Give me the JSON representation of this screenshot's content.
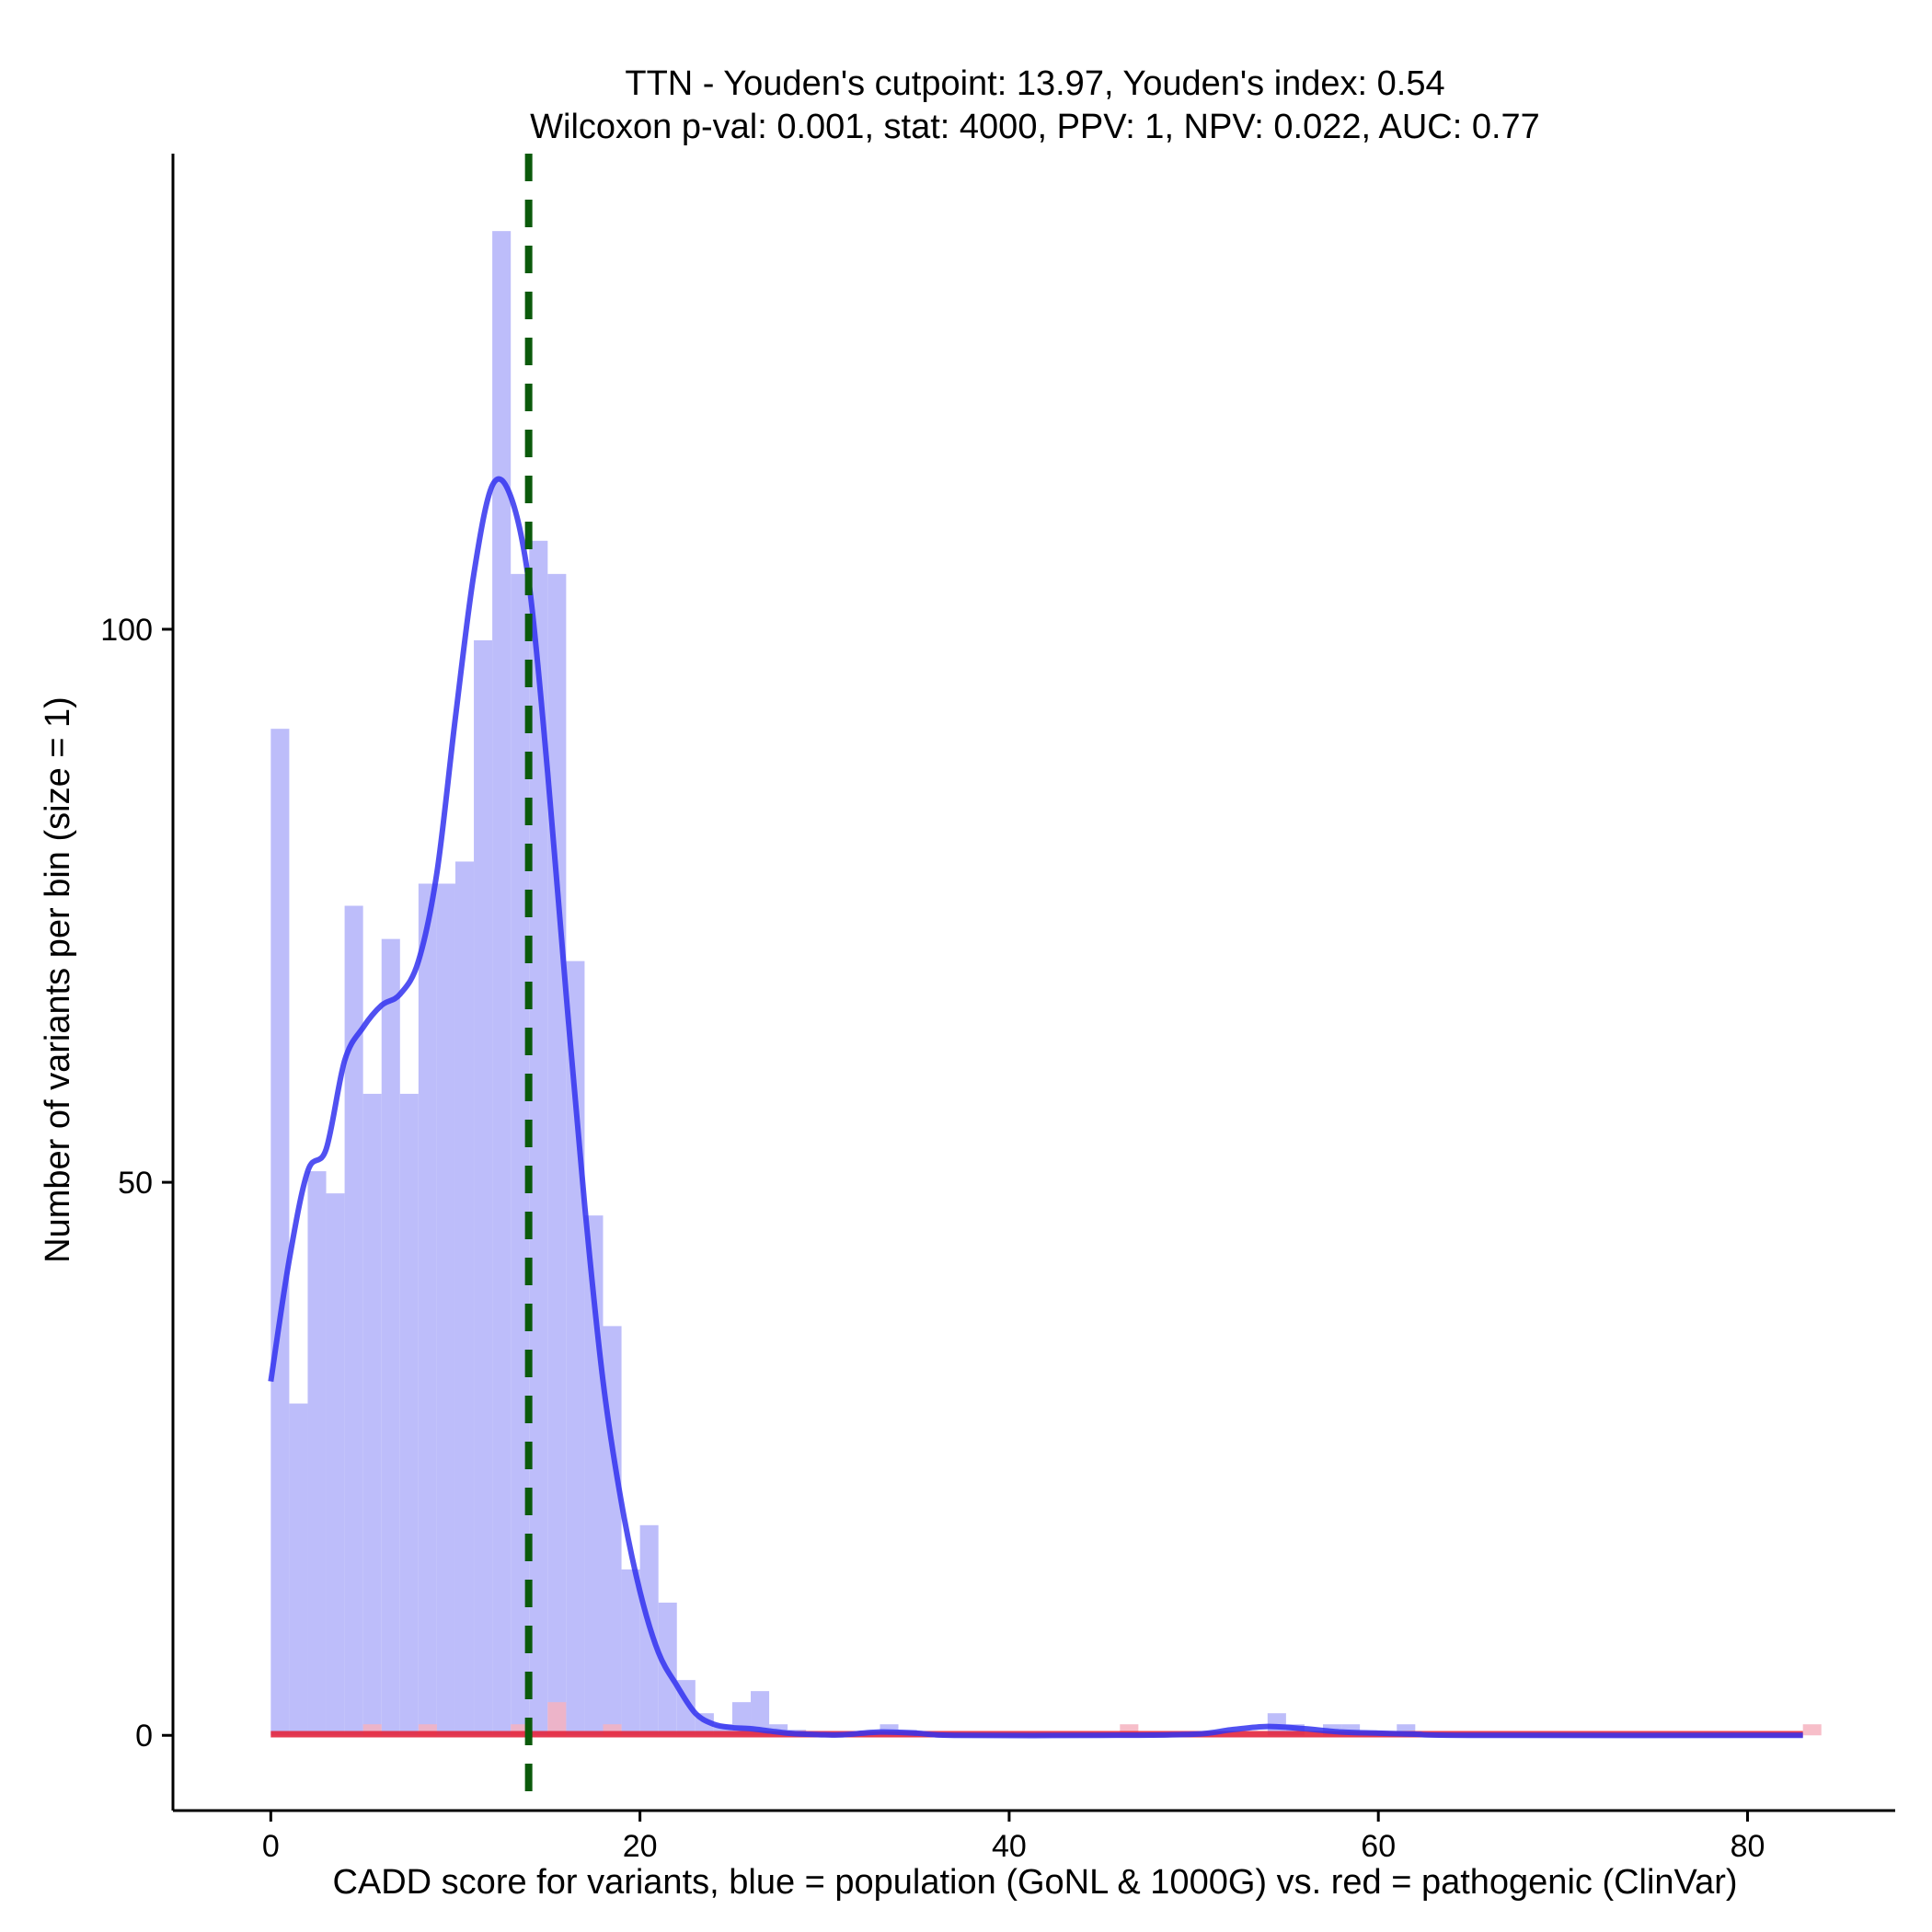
{
  "chart_data": {
    "type": "histogram",
    "title_line1": "TTN - Youden's cutpoint: 13.97, Youden's index: 0.54",
    "title_line2": "Wilcoxon p-val: 0.001, stat: 4000, PPV: 1, NPV: 0.022, AUC: 0.77",
    "xlabel": "CADD score for variants, blue = population (GoNL & 1000G) vs. red = pathogenic (ClinVar)",
    "ylabel": "Number of variants per bin (size = 1)",
    "xlim": [
      -5.3,
      88
    ],
    "ylim": [
      -6.8,
      143
    ],
    "xticks": [
      0,
      20,
      40,
      60,
      80
    ],
    "yticks": [
      0,
      50,
      100
    ],
    "bin_width": 1,
    "cutpoint": 13.97,
    "colors": {
      "population_bars": "#bdbdfa",
      "population_line": "#3333ee",
      "pathogenic_bars": "#f6b3bf",
      "pathogenic_line": "#e3263d",
      "cutpoint_line": "#0b5a0b"
    },
    "series": [
      {
        "role": "population",
        "bins": [
          [
            0,
            91
          ],
          [
            1,
            30
          ],
          [
            2,
            51
          ],
          [
            3,
            49
          ],
          [
            4,
            75
          ],
          [
            5,
            58
          ],
          [
            6,
            72
          ],
          [
            7,
            58
          ],
          [
            8,
            77
          ],
          [
            9,
            77
          ],
          [
            10,
            79
          ],
          [
            11,
            99
          ],
          [
            12,
            136
          ],
          [
            13,
            105
          ],
          [
            14,
            108
          ],
          [
            15,
            105
          ],
          [
            16,
            70
          ],
          [
            17,
            47
          ],
          [
            18,
            37
          ],
          [
            19,
            15
          ],
          [
            20,
            19
          ],
          [
            21,
            12
          ],
          [
            22,
            5
          ],
          [
            23,
            2
          ],
          [
            24,
            1
          ],
          [
            25,
            3
          ],
          [
            26,
            4
          ],
          [
            27,
            1
          ],
          [
            28,
            0.5
          ],
          [
            33,
            1
          ],
          [
            34,
            0.5
          ],
          [
            54,
            2
          ],
          [
            55,
            1
          ],
          [
            57,
            1
          ],
          [
            58,
            1
          ],
          [
            61,
            1
          ]
        ],
        "density": [
          [
            0,
            32
          ],
          [
            1,
            43
          ],
          [
            2,
            51
          ],
          [
            3,
            53
          ],
          [
            4,
            61
          ],
          [
            5,
            64
          ],
          [
            6,
            66
          ],
          [
            7,
            67
          ],
          [
            8,
            70
          ],
          [
            9,
            78
          ],
          [
            10,
            92
          ],
          [
            11,
            105
          ],
          [
            12,
            113
          ],
          [
            13,
            112
          ],
          [
            14,
            104
          ],
          [
            15,
            87
          ],
          [
            16,
            67
          ],
          [
            17,
            48
          ],
          [
            18,
            32
          ],
          [
            19,
            21
          ],
          [
            20,
            13
          ],
          [
            21,
            7.5
          ],
          [
            22,
            4.5
          ],
          [
            23,
            2
          ],
          [
            24,
            1
          ],
          [
            25,
            0.7
          ],
          [
            26,
            0.6
          ],
          [
            27,
            0.4
          ],
          [
            28,
            0.2
          ],
          [
            29,
            0.1
          ],
          [
            30,
            0.05
          ],
          [
            31,
            0.05
          ],
          [
            33,
            0.3
          ],
          [
            35,
            0.2
          ],
          [
            37,
            0
          ],
          [
            45,
            0
          ],
          [
            50,
            0.1
          ],
          [
            52,
            0.5
          ],
          [
            54,
            0.8
          ],
          [
            56,
            0.6
          ],
          [
            58,
            0.3
          ],
          [
            60,
            0.2
          ],
          [
            62,
            0.1
          ],
          [
            65,
            0
          ],
          [
            83,
            0
          ]
        ]
      },
      {
        "role": "pathogenic",
        "bins": [
          [
            5,
            1
          ],
          [
            8,
            1
          ],
          [
            13,
            1
          ],
          [
            15,
            3
          ],
          [
            18,
            1
          ],
          [
            46,
            1
          ],
          [
            83,
            1
          ]
        ],
        "density": [
          [
            0,
            0.1
          ],
          [
            83,
            0.1
          ]
        ]
      }
    ]
  }
}
